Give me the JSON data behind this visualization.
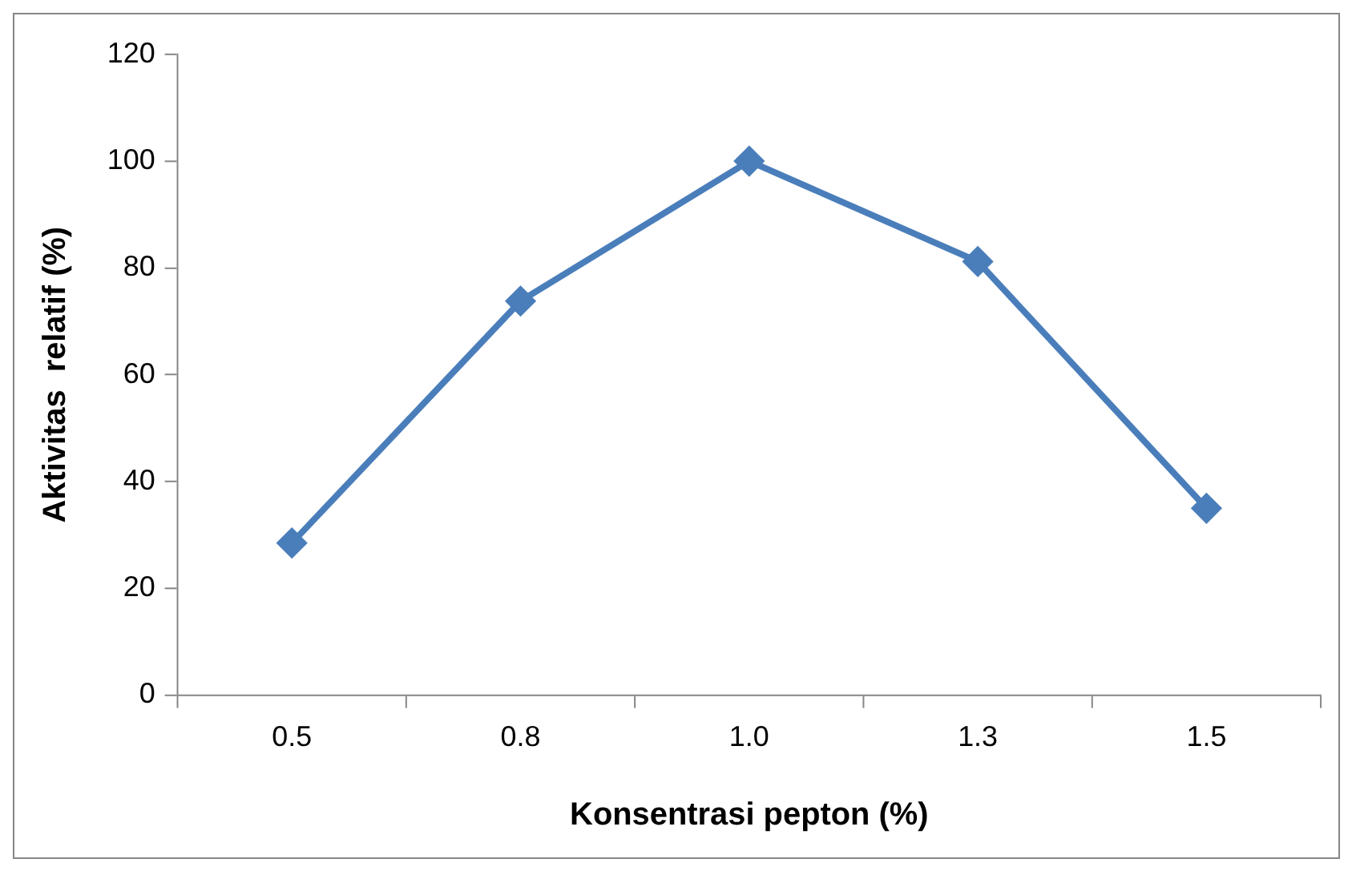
{
  "chart_data": {
    "type": "line",
    "xlabel": "Konsentrasi pepton (%)",
    "ylabel": "Aktivitas  relatif (%)",
    "categories": [
      "0.5",
      "0.8",
      "1.0",
      "1.3",
      "1.5"
    ],
    "series": [
      {
        "color": "#4a7ebb",
        "values": [
          28.5,
          73.8,
          100,
          81.2,
          35
        ]
      }
    ],
    "ylim": [
      0,
      120
    ],
    "yticks": [
      0,
      20,
      40,
      60,
      80,
      100,
      120
    ],
    "grid": false,
    "legend": false,
    "marker": "diamond",
    "line_style": "solid"
  }
}
